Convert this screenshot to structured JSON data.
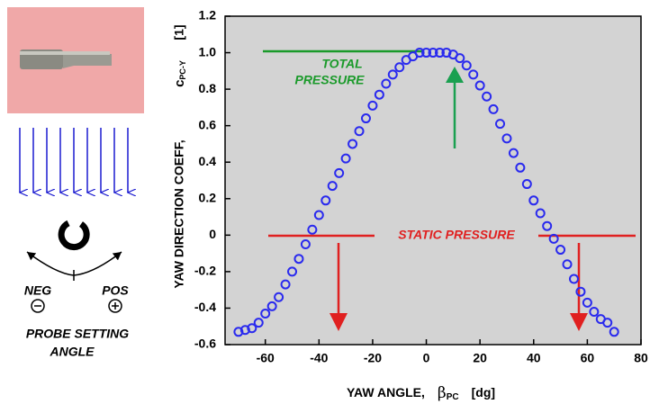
{
  "chart_data": {
    "type": "scatter",
    "xlabel": {
      "text": "YAW ANGLE,",
      "symbol": "β",
      "subscript": "PC",
      "unit": "[dg]"
    },
    "ylabel": {
      "text": "YAW DIRECTION COEFF,",
      "symbol": "c",
      "subscript": "PC-Y",
      "unit": "[1]"
    },
    "annotations": {
      "total": [
        "TOTAL",
        "PRESSURE"
      ],
      "static": "STATIC PRESSURE"
    },
    "illustration": {
      "neg": "NEG",
      "pos": "POS",
      "caption": [
        "PROBE SETTING",
        "ANGLE"
      ]
    },
    "xlim": [
      -75,
      80
    ],
    "xticks": [
      -60,
      -40,
      -20,
      0,
      20,
      40,
      60,
      80
    ],
    "ylim": [
      -0.6,
      1.2
    ],
    "yticks": [
      -0.6,
      -0.4,
      -0.2,
      0,
      0.2,
      0.4,
      0.6,
      0.8,
      {
        "value": 1.0,
        "label": "1.0"
      },
      1.2
    ],
    "background": "#d3d3d3",
    "series": [
      {
        "color": "#2a2aee",
        "x": [
          -70,
          -67.5,
          -65,
          -62.5,
          -60,
          -57.5,
          -55,
          -52.5,
          -50,
          -47.5,
          -45,
          -42.5,
          -40,
          -37.5,
          -35,
          -32.5,
          -30,
          -27.5,
          -25,
          -22.5,
          -20,
          -17.5,
          -15,
          -12.5,
          -10,
          -7.5,
          -5,
          -2.5,
          0,
          2.5,
          5,
          7.5,
          10,
          12.5,
          15,
          17.5,
          20,
          22.5,
          25,
          27.5,
          30,
          32.5,
          35,
          37.5,
          40,
          42.5,
          45,
          47.5,
          50,
          52.5,
          55,
          57.5,
          60,
          62.5,
          65,
          67.5,
          70
        ],
        "values": [
          -0.53,
          -0.52,
          -0.51,
          -0.48,
          -0.43,
          -0.39,
          -0.34,
          -0.27,
          -0.2,
          -0.13,
          -0.05,
          0.03,
          0.11,
          0.19,
          0.27,
          0.34,
          0.42,
          0.5,
          0.57,
          0.64,
          0.71,
          0.77,
          0.83,
          0.88,
          0.92,
          0.96,
          0.98,
          1.0,
          1.0,
          1.0,
          1.0,
          1.0,
          0.99,
          0.97,
          0.93,
          0.88,
          0.82,
          0.76,
          0.69,
          0.61,
          0.53,
          0.45,
          0.37,
          0.28,
          0.19,
          0.12,
          0.05,
          -0.02,
          -0.08,
          -0.16,
          -0.24,
          -0.31,
          -0.37,
          -0.42,
          -0.46,
          -0.48,
          -0.53
        ]
      }
    ]
  }
}
